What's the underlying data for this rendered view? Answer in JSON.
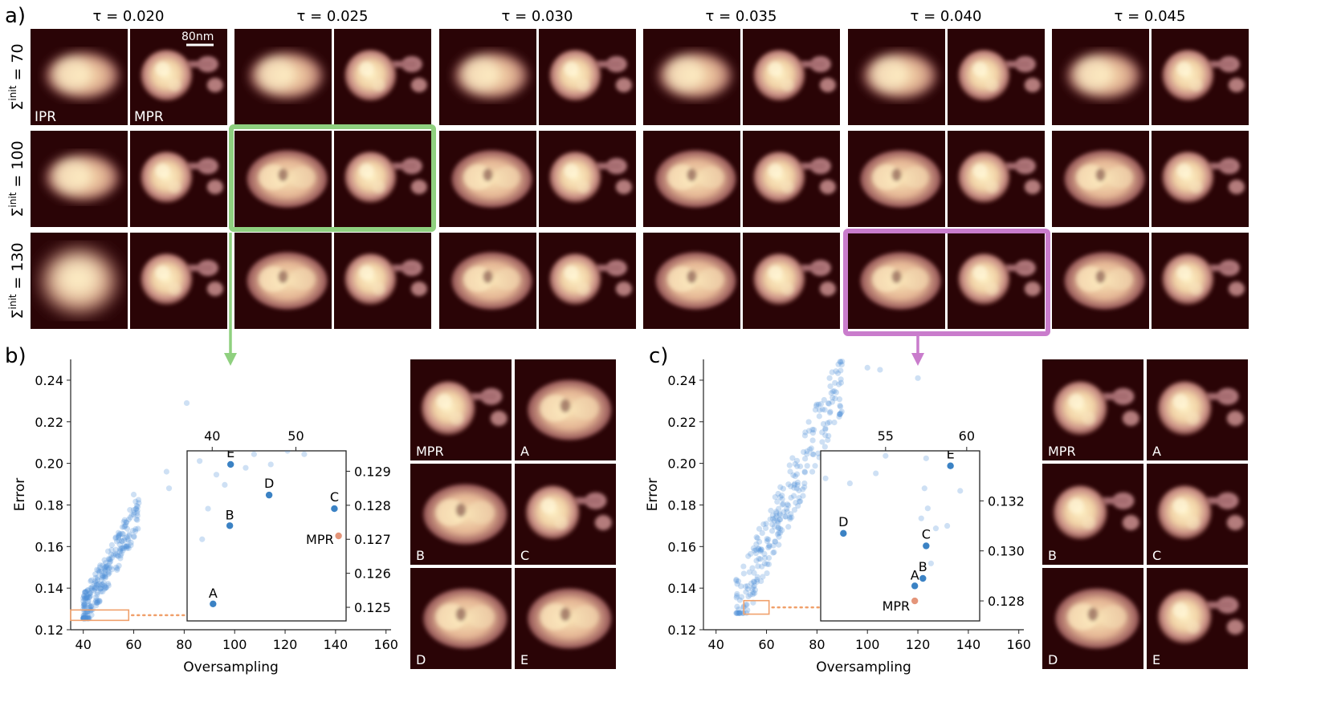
{
  "panel_a": {
    "label": "a)",
    "tau_headers": [
      "τ = 0.020",
      "τ = 0.025",
      "τ = 0.030",
      "τ = 0.035",
      "τ = 0.040",
      "τ = 0.045"
    ],
    "sigma_rows": [
      "70",
      "100",
      "130"
    ],
    "sigma_symbol": "Σ",
    "sigma_superscript": "init",
    "scale_bar": "80nm",
    "ipr_label": "IPR",
    "mpr_label": "MPR",
    "highlight_green": {
      "tau": "0.025",
      "sigma": "100",
      "color": "#8fd07f"
    },
    "highlight_purple": {
      "tau": "0.040",
      "sigma": "130",
      "color": "#c97ccc"
    }
  },
  "panel_b": {
    "label": "b)",
    "x_ticks": [
      "40",
      "60",
      "80",
      "100",
      "120",
      "140",
      "160"
    ],
    "y_ticks": [
      "0.12",
      "0.14",
      "0.16",
      "0.18",
      "0.20",
      "0.22",
      "0.24"
    ],
    "xlabel": "Oversampling",
    "ylabel": "Error",
    "inset_x_ticks": [
      "40",
      "50"
    ],
    "inset_y_ticks": [
      "0.125",
      "0.126",
      "0.127",
      "0.128",
      "0.129"
    ],
    "image_labels": [
      "MPR",
      "A",
      "B",
      "C",
      "D",
      "E"
    ]
  },
  "panel_c": {
    "label": "c)",
    "x_ticks": [
      "40",
      "60",
      "80",
      "100",
      "120",
      "140",
      "160"
    ],
    "y_ticks": [
      "0.12",
      "0.14",
      "0.16",
      "0.18",
      "0.20",
      "0.22",
      "0.24"
    ],
    "xlabel": "Oversampling",
    "ylabel": "Error",
    "inset_x_ticks": [
      "55",
      "60"
    ],
    "inset_y_ticks": [
      "0.128",
      "0.130",
      "0.132"
    ],
    "image_labels": [
      "MPR",
      "A",
      "B",
      "C",
      "D",
      "E"
    ]
  },
  "chart_data": [
    {
      "type": "scatter",
      "panel": "b",
      "xlabel": "Oversampling",
      "ylabel": "Error",
      "xlim": [
        35,
        162
      ],
      "ylim": [
        0.12,
        0.25
      ],
      "annotated_points": [
        {
          "label": "A",
          "x": 40.1,
          "y": 0.1251
        },
        {
          "label": "B",
          "x": 42.1,
          "y": 0.1274
        },
        {
          "label": "C",
          "x": 54.6,
          "y": 0.1279
        },
        {
          "label": "D",
          "x": 46.8,
          "y": 0.1283
        },
        {
          "label": "E",
          "x": 42.2,
          "y": 0.1292
        },
        {
          "label": "MPR",
          "x": 55.1,
          "y": 0.1271
        }
      ],
      "inset": {
        "xlim": [
          37,
          56
        ],
        "ylim": [
          0.1246,
          0.1296
        ]
      }
    },
    {
      "type": "scatter",
      "panel": "c",
      "xlabel": "Oversampling",
      "ylabel": "Error",
      "xlim": [
        35,
        162
      ],
      "ylim": [
        0.12,
        0.25
      ],
      "annotated_points": [
        {
          "label": "A",
          "x": 56.8,
          "y": 0.1286
        },
        {
          "label": "B",
          "x": 57.3,
          "y": 0.1289
        },
        {
          "label": "C",
          "x": 57.5,
          "y": 0.1302
        },
        {
          "label": "D",
          "x": 52.4,
          "y": 0.1307
        },
        {
          "label": "E",
          "x": 59.0,
          "y": 0.1334
        },
        {
          "label": "MPR",
          "x": 56.8,
          "y": 0.128
        }
      ],
      "inset": {
        "xlim": [
          51.0,
          60.8
        ],
        "ylim": [
          0.1272,
          0.134
        ]
      }
    }
  ]
}
